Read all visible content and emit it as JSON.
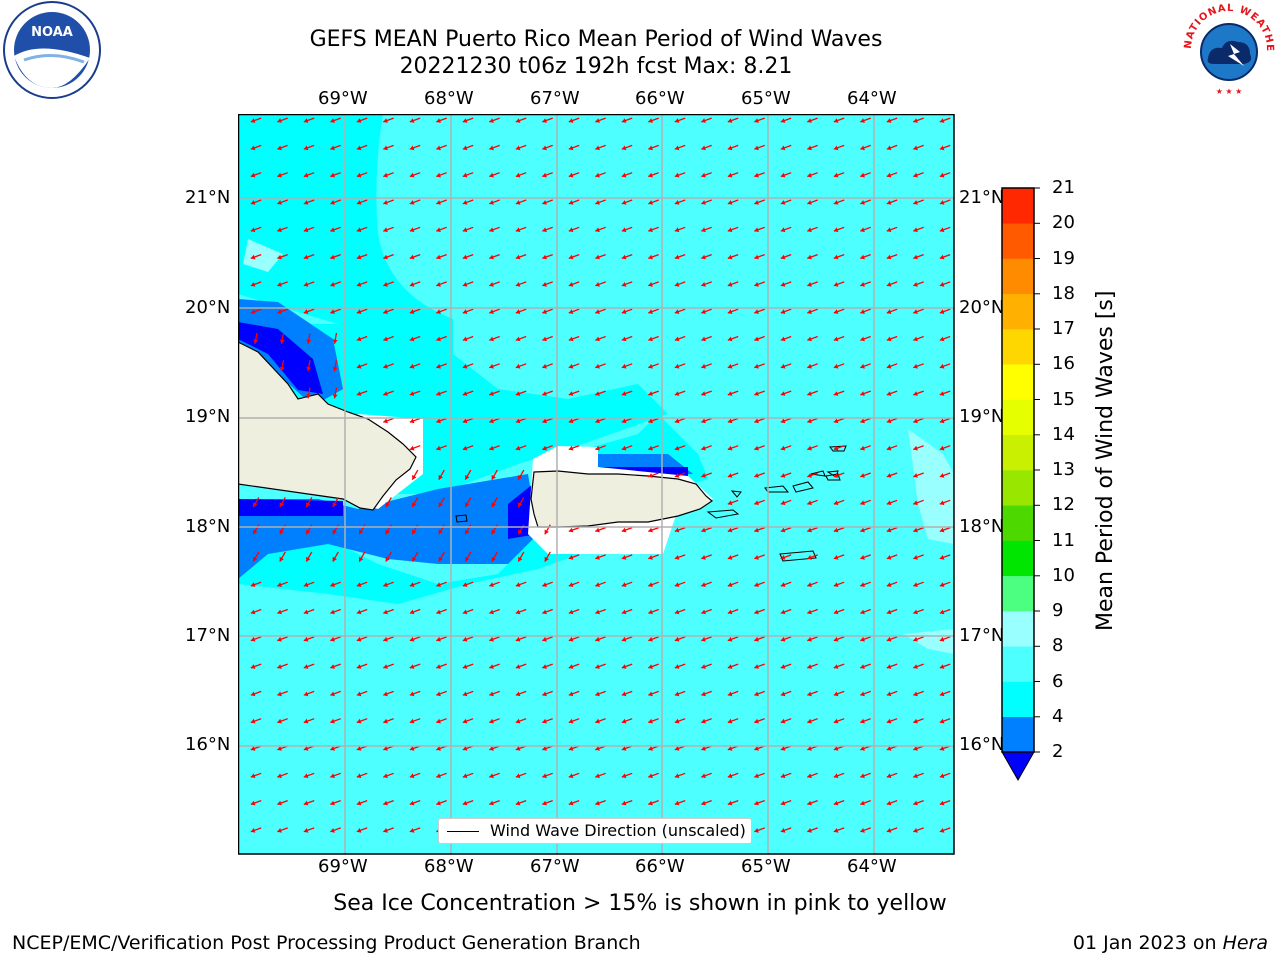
{
  "title": {
    "line1": "GEFS MEAN Puerto Rico Mean Period of Wind Waves",
    "line2": "20221230 t06z 192h fcst   Max: 8.21"
  },
  "logos": {
    "left": "NOAA",
    "right": "NATIONAL WEATHER SERVICE"
  },
  "map": {
    "lon_labels": [
      "69°W",
      "68°W",
      "67°W",
      "66°W",
      "65°W",
      "64°W"
    ],
    "lat_labels": [
      "21°N",
      "20°N",
      "19°N",
      "18°N",
      "17°N",
      "16°N"
    ],
    "legend_label": "Wind Wave Direction (unscaled)",
    "colors": {
      "ocean_6_8": "#4dffff",
      "ocean_4_6": "#00ffff",
      "ocean_8_9": "#99ffff",
      "ocean_2_4": "#0080ff",
      "ocean_lt2": "#0000ff",
      "land": "#efefdf",
      "arrow": "#ff0000",
      "grid": "#b0b0b0"
    }
  },
  "colorbar": {
    "label": "Mean Period of Wind Waves [s]",
    "ticks": [
      "2",
      "4",
      "6",
      "8",
      "9",
      "10",
      "11",
      "12",
      "13",
      "14",
      "15",
      "16",
      "17",
      "18",
      "19",
      "20",
      "21"
    ],
    "bands": [
      "#0080ff",
      "#00ffff",
      "#4dffff",
      "#99ffff",
      "#4dff80",
      "#00e600",
      "#4dd900",
      "#99e600",
      "#c8f000",
      "#e6ff00",
      "#ffff00",
      "#ffd700",
      "#ffb000",
      "#ff8c00",
      "#ff5a00",
      "#ff2800"
    ],
    "under_color": "#0000ff",
    "top_color": "#ff0000"
  },
  "caption": "Sea Ice Concentration > 15% is shown in pink to yellow",
  "footer": {
    "left": "NCEP/EMC/Verification Post Processing Product Generation Branch",
    "right_prefix": "01 Jan 2023 on ",
    "right_italic": "Hera"
  }
}
